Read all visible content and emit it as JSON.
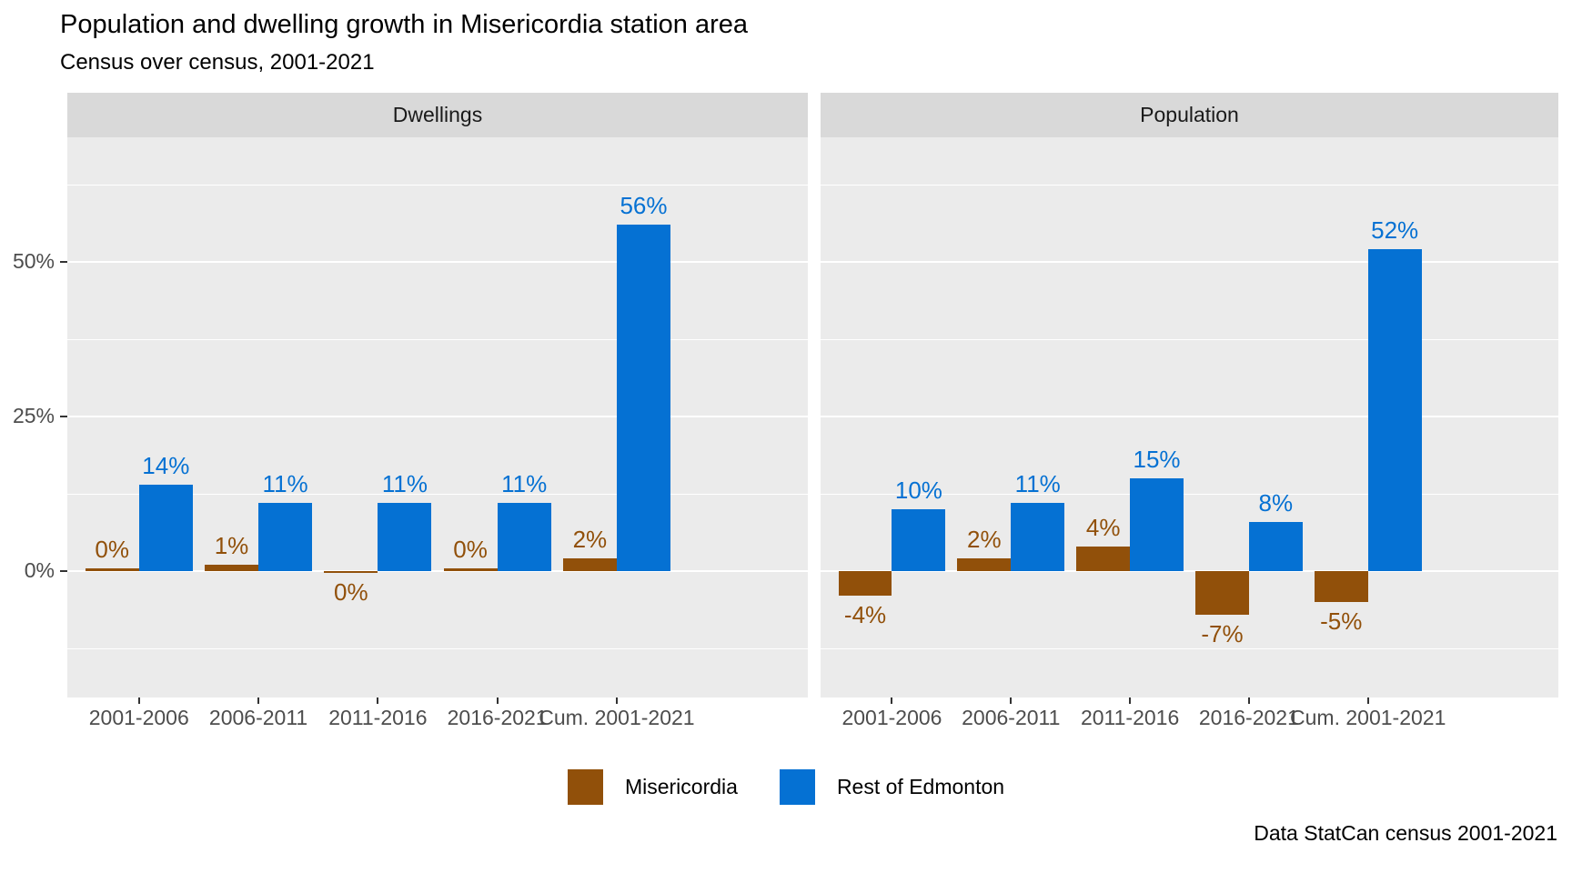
{
  "title": "Population and dwelling growth in Misericordia station area",
  "subtitle": "Census over census, 2001-2021",
  "caption": "Data StatCan census 2001-2021",
  "colors": {
    "misericordia": "#91500a",
    "rest_of_edmonton": "#0571d3",
    "panel_background": "#ebebeb",
    "strip_background": "#d9d9d9",
    "gridline": "#ffffff",
    "axis_text": "#4d4d4d",
    "strip_text": "#1a1a1a"
  },
  "legend": {
    "items": [
      {
        "label": "Misericordia",
        "color": "#91500a"
      },
      {
        "label": "Rest of Edmonton",
        "color": "#0571d3"
      }
    ]
  },
  "chart_data": {
    "type": "bar",
    "title": "Population and dwelling growth in Misericordia station area",
    "subtitle": "Census over census, 2001-2021",
    "caption": "Data StatCan census 2001-2021",
    "categories": [
      "2001-2006",
      "2006-2011",
      "2011-2016",
      "2016-2021",
      "Cum. 2001-2021"
    ],
    "facets": [
      {
        "label": "Dwellings",
        "series": [
          {
            "name": "Misericordia",
            "color": "#91500a",
            "values": [
              0.5,
              1,
              -0.3,
              0.4,
              2
            ],
            "labels": [
              "0%",
              "1%",
              "0%",
              "0%",
              "2%"
            ]
          },
          {
            "name": "Rest of Edmonton",
            "color": "#0571d3",
            "values": [
              14,
              11,
              11,
              11,
              56
            ],
            "labels": [
              "14%",
              "11%",
              "11%",
              "11%",
              "56%"
            ]
          }
        ]
      },
      {
        "label": "Population",
        "series": [
          {
            "name": "Misericordia",
            "color": "#91500a",
            "values": [
              -4,
              2,
              4,
              -7,
              -5
            ],
            "labels": [
              "-4%",
              "2%",
              "4%",
              "-7%",
              "-5%"
            ]
          },
          {
            "name": "Rest of Edmonton",
            "color": "#0571d3",
            "values": [
              10,
              11,
              15,
              8,
              52
            ],
            "labels": [
              "10%",
              "11%",
              "15%",
              "8%",
              "52%"
            ]
          }
        ]
      }
    ],
    "y_axis": {
      "ticks": [
        {
          "label": "0%",
          "value": 0
        },
        {
          "label": "25%",
          "value": 25
        },
        {
          "label": "50%",
          "value": 50
        }
      ],
      "minor_gridlines": [
        -12.5,
        12.5,
        37.5,
        62.5
      ],
      "range": [
        -20,
        70
      ],
      "unit": "percent"
    },
    "grid": true,
    "legend_position": "bottom"
  }
}
